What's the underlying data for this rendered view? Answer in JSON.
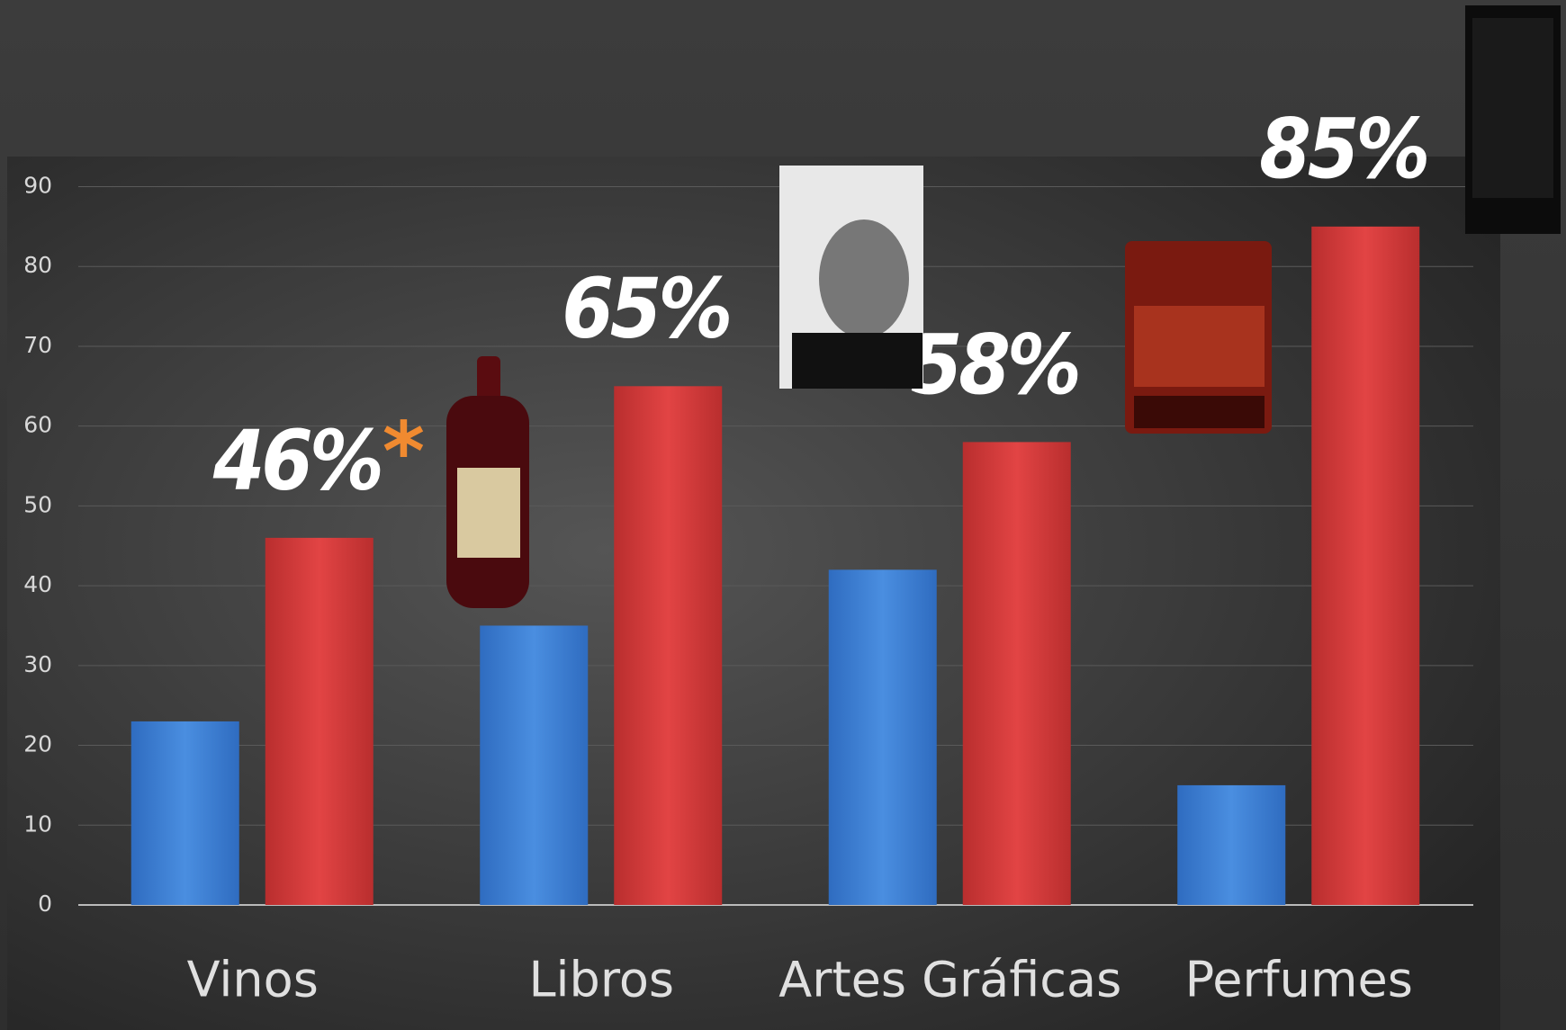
{
  "chart_data": {
    "type": "bar",
    "categories": [
      "Vinos",
      "Libros",
      "Artes Gráficas",
      "Perfumes"
    ],
    "series": [
      {
        "color": "#3b7fd4",
        "values": [
          23,
          35,
          42,
          15
        ]
      },
      {
        "color": "#d63a3a",
        "values": [
          46,
          65,
          58,
          85
        ],
        "value_labels": [
          "46%",
          "65%",
          "58%",
          "85%"
        ]
      }
    ],
    "annotation": "*",
    "ylim": [
      0,
      90
    ],
    "yticks": [
      0,
      10,
      20,
      30,
      40,
      50,
      60,
      70,
      80,
      90
    ],
    "grid": true
  }
}
